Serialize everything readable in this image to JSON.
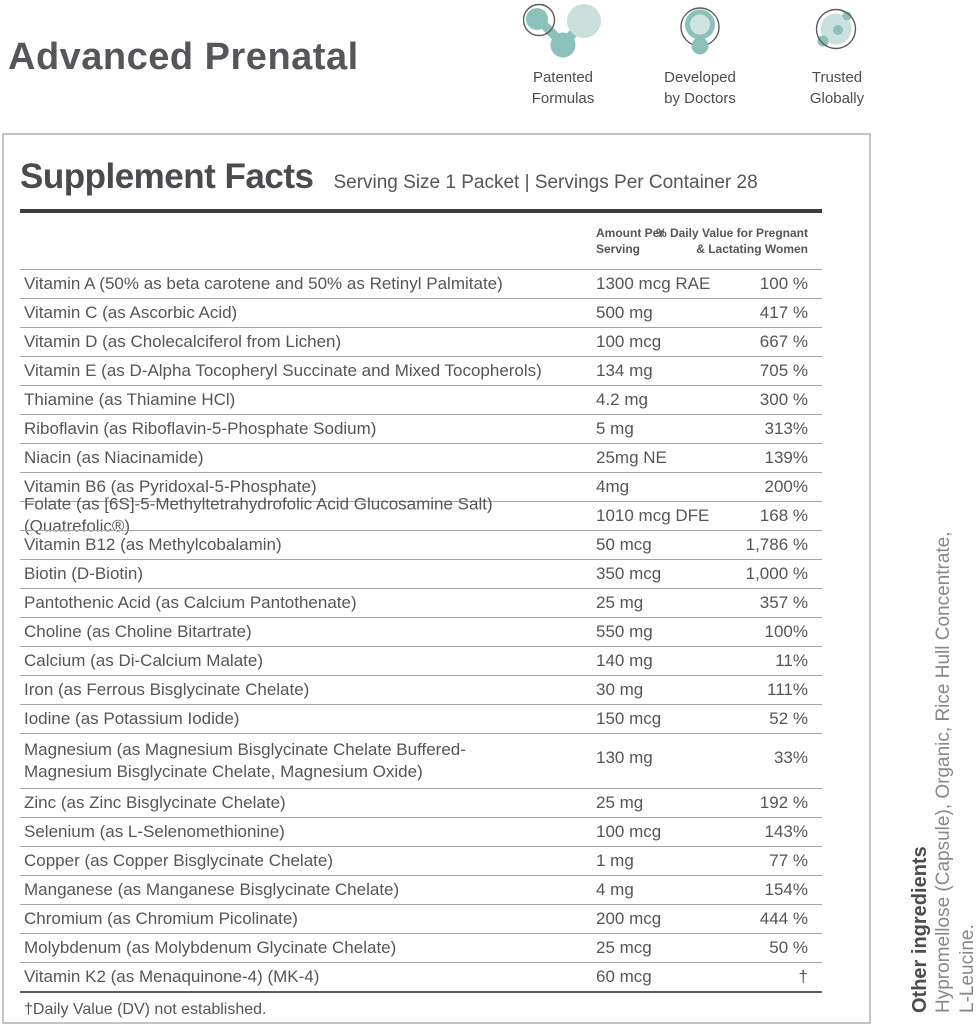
{
  "page": {
    "title": "Advanced Prenatal"
  },
  "badges": [
    {
      "icon": "patented-formulas-icon",
      "label": "Patented\nFormulas"
    },
    {
      "icon": "developed-by-doctors-icon",
      "label": "Developed\nby Doctors"
    },
    {
      "icon": "trusted-globally-icon",
      "label": "Trusted\nGlobally"
    }
  ],
  "supplement_facts": {
    "title": "Supplement Facts",
    "serving_info": "Serving Size 1 Packet | Servings Per Container 28",
    "columns": {
      "amount": "Amount Per\nServing",
      "daily_value": "% Daily Value for Pregnant\n& Lactating Women"
    },
    "rows": [
      {
        "name": "Vitamin A (50% as beta carotene and 50% as Retinyl Palmitate)",
        "amount": "1300 mcg RAE",
        "dv": "100 %"
      },
      {
        "name": "Vitamin C (as Ascorbic Acid)",
        "amount": "500 mg",
        "dv": "417 %"
      },
      {
        "name": "Vitamin D (as Cholecalciferol from Lichen)",
        "amount": "100 mcg",
        "dv": "667 %"
      },
      {
        "name": "Vitamin E (as D-Alpha Tocopheryl Succinate and Mixed Tocopherols)",
        "amount": "134 mg",
        "dv": "705 %"
      },
      {
        "name": "Thiamine (as Thiamine HCl)",
        "amount": "4.2 mg",
        "dv": "300 %"
      },
      {
        "name": "Riboflavin (as Riboflavin-5-Phosphate Sodium)",
        "amount": "5 mg",
        "dv": "313%"
      },
      {
        "name": "Niacin (as Niacinamide)",
        "amount": "25mg NE",
        "dv": "139%"
      },
      {
        "name": "Vitamin B6 (as Pyridoxal-5-Phosphate)",
        "amount": "4mg",
        "dv": "200%"
      },
      {
        "name": "Folate (as [6S]-5-Methyltetrahydrofolic Acid Glucosamine Salt) (Quatrefolic®)",
        "amount": "1010 mcg DFE",
        "dv": "168 %"
      },
      {
        "name": "Vitamin B12 (as Methylcobalamin)",
        "amount": "50 mcg",
        "dv": "1,786 %"
      },
      {
        "name": "Biotin (D-Biotin)",
        "amount": "350 mcg",
        "dv": "1,000 %"
      },
      {
        "name": "Pantothenic Acid (as Calcium Pantothenate)",
        "amount": "25 mg",
        "dv": "357 %"
      },
      {
        "name": "Choline (as Choline Bitartrate)",
        "amount": "550 mg",
        "dv": "100%"
      },
      {
        "name": "Calcium (as Di-Calcium Malate)",
        "amount": "140 mg",
        "dv": "11%"
      },
      {
        "name": "Iron (as Ferrous Bisglycinate Chelate)",
        "amount": "30 mg",
        "dv": "111%"
      },
      {
        "name": "Iodine (as Potassium Iodide)",
        "amount": "150 mcg",
        "dv": "52 %"
      },
      {
        "name": "Magnesium (as Magnesium Bisglycinate Chelate Buffered-\nMagnesium Bisglycinate Chelate, Magnesium Oxide)",
        "amount": "130 mg",
        "dv": "33%"
      },
      {
        "name": "Zinc (as Zinc Bisglycinate Chelate)",
        "amount": "25 mg",
        "dv": "192 %"
      },
      {
        "name": "Selenium (as L-Selenomethionine)",
        "amount": "100 mcg",
        "dv": "143%"
      },
      {
        "name": "Copper (as Copper Bisglycinate Chelate)",
        "amount": "1 mg",
        "dv": "77 %"
      },
      {
        "name": "Manganese (as Manganese Bisglycinate Chelate)",
        "amount": "4 mg",
        "dv": "154%"
      },
      {
        "name": "Chromium (as Chromium Picolinate)",
        "amount": "200 mcg",
        "dv": "444 %"
      },
      {
        "name": "Molybdenum (as Molybdenum Glycinate Chelate)",
        "amount": "25 mcg",
        "dv": "50 %"
      },
      {
        "name": "Vitamin K2 (as Menaquinone-4) (MK-4)",
        "amount": "60 mcg",
        "dv": "†"
      }
    ],
    "footnote": "†Daily Value (DV) not established."
  },
  "other_ingredients": {
    "heading": "Other ingredients",
    "line1": "Hypromellose (Capsule), Organic, Rice Hull Concentrate,",
    "line2": "L-Leucine."
  },
  "colors": {
    "teal": "#8cc0ba",
    "teal_light": "#c9e0dd",
    "outline_gray": "#5b5c5e",
    "text_gray": "#55565a"
  }
}
